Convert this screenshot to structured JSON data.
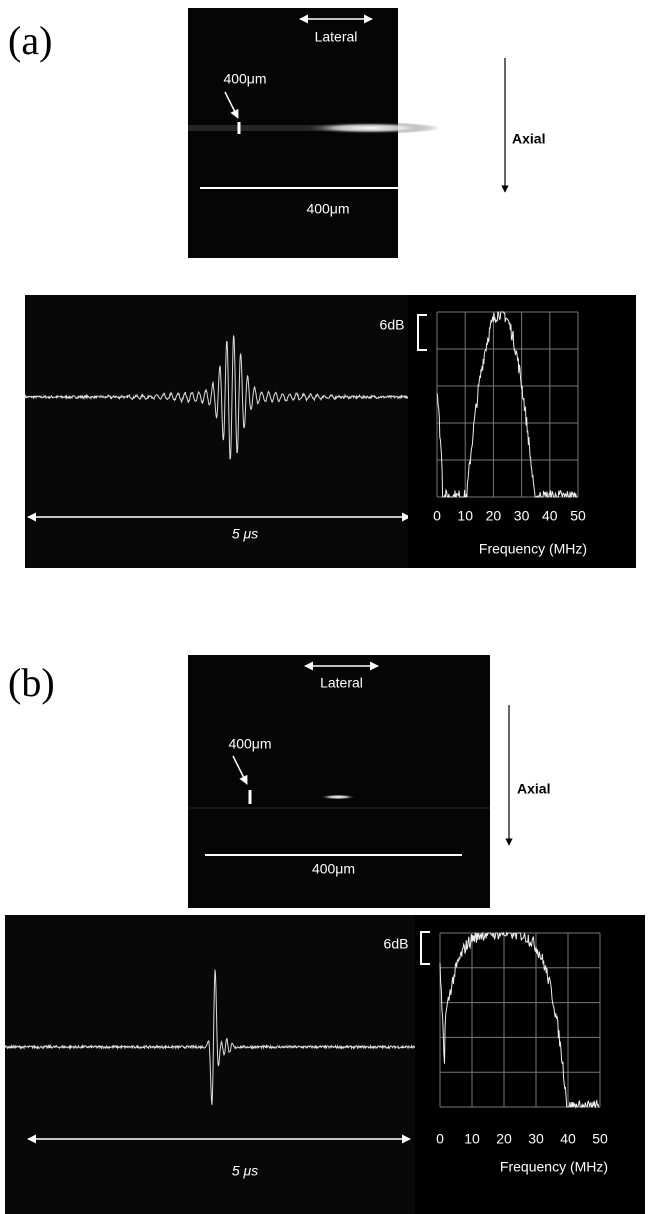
{
  "panels": [
    {
      "label": "(a)",
      "image": {
        "lateral": "Lateral",
        "axial": "Axial",
        "scale_vertical": "400μm",
        "scale_horizontal": "400μm"
      },
      "waveform": {
        "duration": "5 μs"
      },
      "spectrum": {
        "db_scale": "6dB",
        "xticks": [
          0,
          10,
          20,
          30,
          40,
          50
        ],
        "xlabel": "Frequency (MHz)"
      }
    },
    {
      "label": "(b)",
      "image": {
        "lateral": "Lateral",
        "axial": "Axial",
        "scale_vertical": "400μm",
        "scale_horizontal": "400μm"
      },
      "waveform": {
        "duration": "5 μs"
      },
      "spectrum": {
        "db_scale": "6dB",
        "xticks": [
          0,
          10,
          20,
          30,
          40,
          50
        ],
        "xlabel": "Frequency (MHz)"
      }
    }
  ]
}
